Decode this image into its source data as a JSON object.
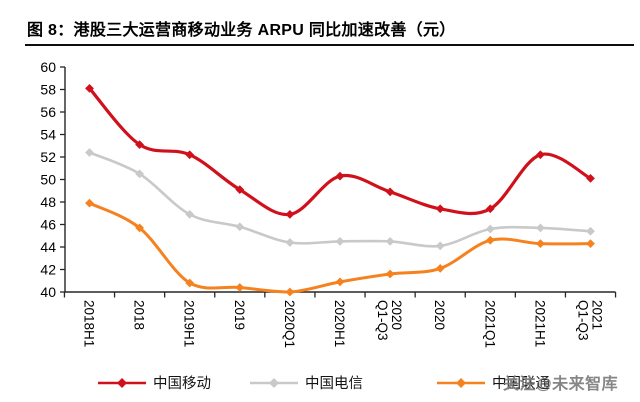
{
  "title": "图 8：港股三大运营商移动业务 ARPU 同比加速改善（元）",
  "watermark": "关注@未来智库",
  "chart_data": {
    "type": "line",
    "title": "港股三大运营商移动业务 ARPU 同比加速改善（元）",
    "unit": "元",
    "categories": [
      "2018H1",
      "2018",
      "2019H1",
      "2019",
      "2020Q1",
      "2020H1",
      "2020\nQ1-Q3",
      "2020",
      "2021Q1",
      "2021H1",
      "2021\nQ1-Q3"
    ],
    "series": [
      {
        "name": "中国移动",
        "color": "#d0111b",
        "marker": "diamond",
        "line_width": 3.2,
        "values": [
          58.1,
          53.1,
          52.2,
          49.1,
          46.9,
          50.3,
          48.9,
          47.4,
          47.4,
          52.2,
          50.1
        ]
      },
      {
        "name": "中国电信",
        "color": "#c9c9c9",
        "marker": "diamond",
        "line_width": 2.6,
        "values": [
          52.4,
          50.5,
          46.9,
          45.8,
          44.4,
          44.5,
          44.5,
          44.1,
          45.6,
          45.7,
          45.4
        ]
      },
      {
        "name": "中国联通",
        "color": "#f5821f",
        "marker": "diamond",
        "line_width": 3.0,
        "values": [
          47.9,
          45.7,
          40.8,
          40.4,
          40.0,
          40.9,
          41.6,
          42.1,
          44.6,
          44.3,
          44.3
        ]
      }
    ],
    "ylim": [
      40,
      60
    ],
    "y_ticks": [
      40,
      42,
      44,
      46,
      48,
      50,
      52,
      54,
      56,
      58,
      60
    ],
    "grid": false,
    "smooth": true,
    "legend_position": "bottom"
  }
}
